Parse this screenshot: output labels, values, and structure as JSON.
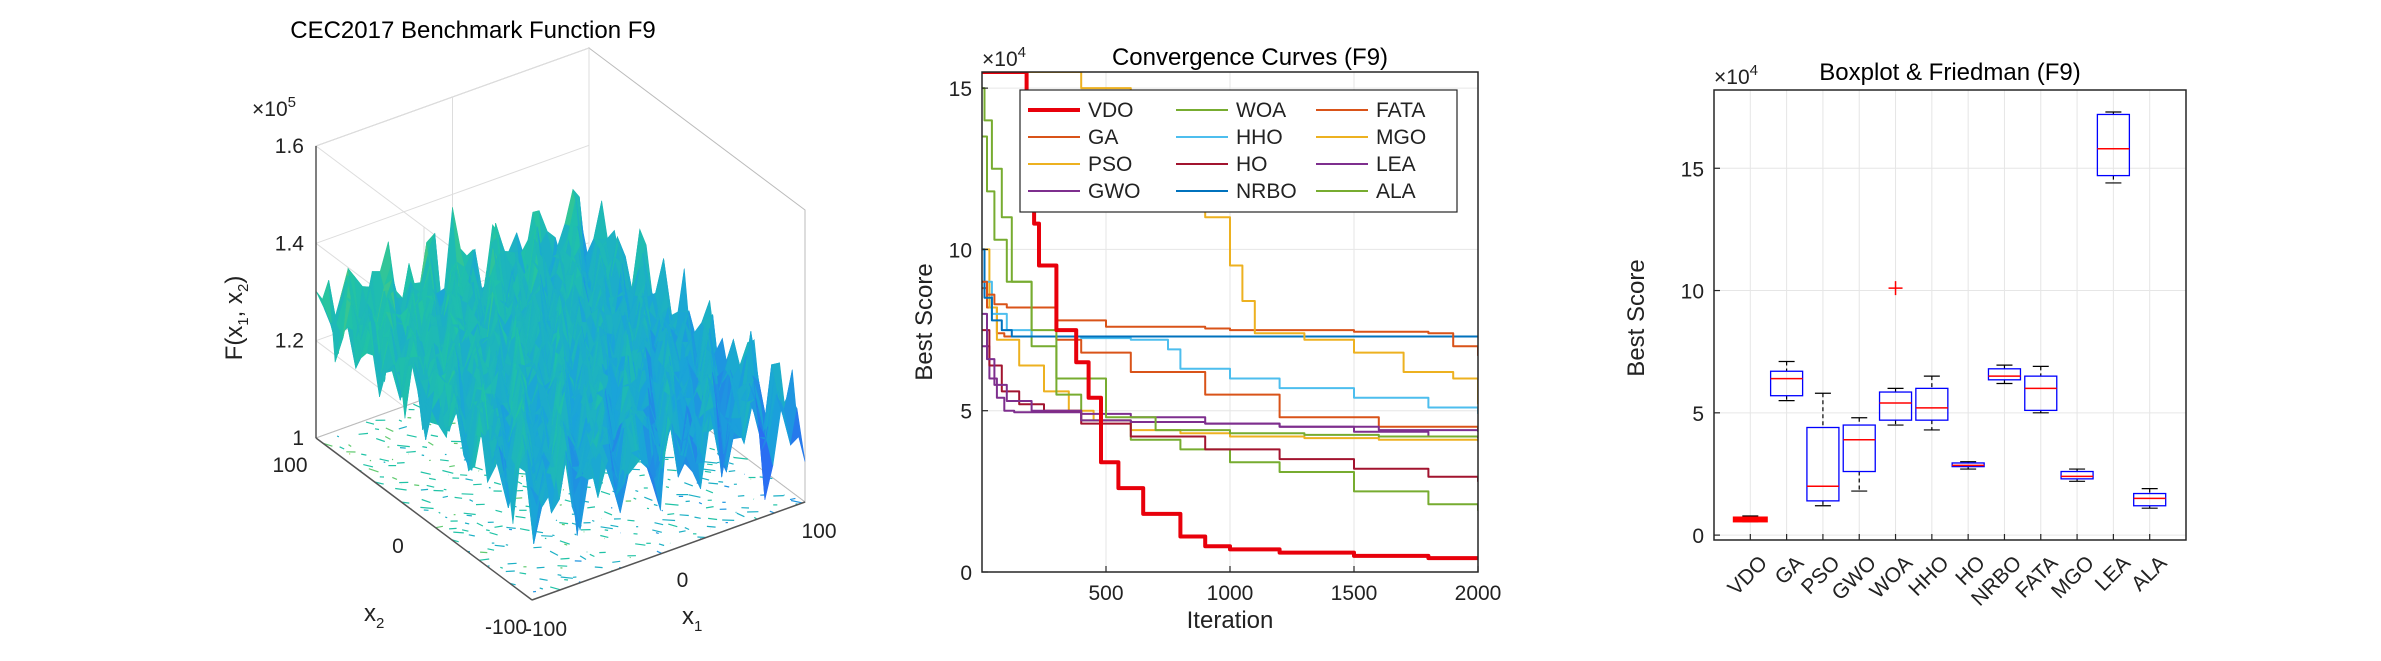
{
  "chart_data": [
    {
      "type": "surface3d",
      "title": "CEC2017 Benchmark Function F9",
      "zlabel": "F(x_1, x_2)",
      "zlabel_main": "F(x",
      "zlabel_sub1": "1",
      "zlabel_mid": ", x",
      "zlabel_sub2": "2",
      "zlabel_end": ")",
      "xlabel": "x_1",
      "xlabel_main": "x",
      "xlabel_sub": "1",
      "ylabel": "x_2",
      "ylabel_main": "x",
      "ylabel_sub": "2",
      "z_exponent_base": "×10",
      "z_exponent_power": "5",
      "z_ticks": [
        "1",
        "1.2",
        "1.4",
        "1.6"
      ],
      "z_tick_values": [
        1.0,
        1.2,
        1.4,
        1.6
      ],
      "x_ticks": [
        "-100",
        "0",
        "100"
      ],
      "x_tick_values": [
        -100,
        0,
        100
      ],
      "y_ticks": [
        "-100",
        "0",
        "100"
      ],
      "y_tick_values": [
        -100,
        0,
        100
      ],
      "zlim": [
        1.0,
        1.6
      ],
      "xlim": [
        -100,
        100
      ],
      "ylim": [
        -100,
        100
      ],
      "colormap": [
        "#3e26a8",
        "#2f5df9",
        "#1aa3da",
        "#20c3a6",
        "#8bcf4b",
        "#eec13b",
        "#f9fb15"
      ]
    },
    {
      "type": "line",
      "title": "Convergence Curves (F9)",
      "xlabel": "Iteration",
      "ylabel": "Best Score",
      "y_exponent_base": "×10",
      "y_exponent_power": "4",
      "xlim": [
        0,
        2000
      ],
      "ylim": [
        0,
        155000
      ],
      "x_ticks": [
        "500",
        "1000",
        "1500",
        "2000"
      ],
      "x_tick_values": [
        500,
        1000,
        1500,
        2000
      ],
      "y_ticks": [
        "0",
        "5",
        "10",
        "15"
      ],
      "y_tick_values": [
        0,
        50000,
        100000,
        150000
      ],
      "legend_location": "top",
      "series": [
        {
          "name": "VDO",
          "color": "#e8000b",
          "width": 4,
          "x": [
            0,
            120,
            180,
            210,
            230,
            300,
            380,
            430,
            480,
            550,
            650,
            800,
            900,
            1000,
            1200,
            1500,
            1800,
            2000
          ],
          "y": [
            155000,
            155000,
            128000,
            108000,
            95000,
            75000,
            65000,
            54000,
            34000,
            26000,
            18000,
            11000,
            8000,
            7000,
            6000,
            5000,
            4300,
            4000
          ]
        },
        {
          "name": "GA",
          "color": "#d95319",
          "width": 2,
          "x": [
            0,
            20,
            60,
            90,
            300,
            400,
            600,
            900,
            1200,
            1600,
            2000
          ],
          "y": [
            88000,
            82000,
            74000,
            73000,
            72000,
            68000,
            62000,
            55000,
            48000,
            45000,
            44000
          ]
        },
        {
          "name": "PSO",
          "color": "#edb120",
          "width": 2,
          "x": [
            0,
            30,
            60,
            150,
            250,
            350,
            450,
            600,
            800,
            1000,
            1300,
            1600,
            2000
          ],
          "y": [
            100000,
            82000,
            72000,
            64000,
            56000,
            50000,
            47000,
            44000,
            43000,
            42000,
            41500,
            41000,
            40500
          ]
        },
        {
          "name": "GWO",
          "color": "#7e2f8e",
          "width": 2,
          "x": [
            0,
            30,
            60,
            90,
            130,
            200,
            400,
            600,
            900,
            1200,
            1600,
            2000
          ],
          "y": [
            70000,
            60000,
            54000,
            50000,
            49500,
            49500,
            49000,
            48000,
            46000,
            45000,
            44000,
            43500
          ]
        },
        {
          "name": "WOA",
          "color": "#77ac30",
          "width": 2,
          "x": [
            0,
            10,
            40,
            80,
            120,
            200,
            300,
            400,
            600,
            800,
            1000,
            1200,
            1500,
            1800,
            2000
          ],
          "y": [
            150000,
            140000,
            125000,
            110000,
            90000,
            70000,
            55000,
            47000,
            41000,
            38000,
            34000,
            31000,
            25000,
            21000,
            19000
          ]
        },
        {
          "name": "HHO",
          "color": "#4dbeee",
          "width": 2,
          "x": [
            0,
            40,
            100,
            200,
            400,
            600,
            750,
            800,
            1000,
            1200,
            1500,
            1800,
            2000
          ],
          "y": [
            90000,
            80000,
            75000,
            73000,
            72500,
            72000,
            69000,
            63000,
            60000,
            57000,
            54000,
            51000,
            49000
          ]
        },
        {
          "name": "HO",
          "color": "#a2142f",
          "width": 2,
          "x": [
            0,
            30,
            80,
            150,
            250,
            400,
            600,
            900,
            1200,
            1500,
            1800,
            2000
          ],
          "y": [
            75000,
            64000,
            56000,
            52000,
            50000,
            46000,
            42000,
            38000,
            35000,
            32000,
            29500,
            28000
          ]
        },
        {
          "name": "NRBO",
          "color": "#0072bd",
          "width": 2,
          "x": [
            0,
            10,
            40,
            80,
            120,
            2000
          ],
          "y": [
            100000,
            85000,
            78000,
            75000,
            73000,
            73000
          ]
        },
        {
          "name": "FATA",
          "color": "#d95319",
          "width": 2,
          "x": [
            0,
            20,
            50,
            100,
            300,
            500,
            700,
            900,
            1000,
            1200,
            1500,
            1800,
            1900,
            2000
          ],
          "y": [
            90000,
            86000,
            83000,
            82000,
            78000,
            76000,
            76000,
            75500,
            75000,
            75000,
            74500,
            74000,
            70000,
            67000
          ]
        },
        {
          "name": "MGO",
          "color": "#edb120",
          "width": 2,
          "x": [
            0,
            200,
            400,
            600,
            800,
            900,
            1000,
            1050,
            1100,
            1300,
            1500,
            1700,
            1900,
            2000
          ],
          "y": [
            155000,
            155000,
            150000,
            145000,
            125000,
            110000,
            95000,
            84000,
            74000,
            72000,
            68000,
            62000,
            60000,
            52000
          ]
        },
        {
          "name": "LEA",
          "color": "#7e2f8e",
          "width": 2,
          "x": [
            0,
            20,
            50,
            100,
            200,
            400,
            600,
            900,
            1200,
            1500,
            1800,
            2000
          ],
          "y": [
            80000,
            66000,
            58000,
            53000,
            50000,
            47000,
            46500,
            46000,
            45000,
            43500,
            42000,
            41500
          ]
        },
        {
          "name": "ALA",
          "color": "#77ac30",
          "width": 2,
          "x": [
            0,
            20,
            50,
            100,
            200,
            300,
            500,
            700,
            1000,
            1300,
            1600,
            2000
          ],
          "y": [
            135000,
            118000,
            103000,
            90000,
            75000,
            60000,
            48000,
            44000,
            43000,
            42500,
            42000,
            42000
          ]
        }
      ]
    },
    {
      "type": "boxplot",
      "title": "Boxplot & Friedman (F9)",
      "ylabel": "Best Score",
      "y_exponent_base": "×10",
      "y_exponent_power": "4",
      "ylim": [
        -2000,
        182000
      ],
      "y_ticks": [
        "0",
        "5",
        "10",
        "15"
      ],
      "y_tick_values": [
        0,
        50000,
        100000,
        150000
      ],
      "categories": [
        "VDO",
        "GA",
        "PSO",
        "GWO",
        "WOA",
        "HHO",
        "HO",
        "NRBO",
        "FATA",
        "MGO",
        "LEA",
        "ALA"
      ],
      "box_color": "#0000ff",
      "median_color": "#ff0000",
      "boxes": [
        {
          "min": 5500,
          "q1": 5800,
          "median": 6200,
          "q3": 7000,
          "max": 7800,
          "outliers": []
        },
        {
          "min": 55000,
          "q1": 57000,
          "median": 64000,
          "q3": 67000,
          "max": 71000,
          "outliers": []
        },
        {
          "min": 12000,
          "q1": 14000,
          "median": 20000,
          "q3": 44000,
          "max": 58000,
          "outliers": []
        },
        {
          "min": 18000,
          "q1": 26000,
          "median": 39000,
          "q3": 45000,
          "max": 48000,
          "outliers": []
        },
        {
          "min": 45000,
          "q1": 47000,
          "median": 54000,
          "q3": 58500,
          "max": 60000,
          "outliers": [
            101000
          ]
        },
        {
          "min": 43000,
          "q1": 47000,
          "median": 52000,
          "q3": 60000,
          "max": 65000,
          "outliers": []
        },
        {
          "min": 27000,
          "q1": 28000,
          "median": 28500,
          "q3": 29500,
          "max": 30000,
          "outliers": []
        },
        {
          "min": 62000,
          "q1": 63500,
          "median": 65000,
          "q3": 68000,
          "max": 69500,
          "outliers": []
        },
        {
          "min": 50000,
          "q1": 51000,
          "median": 60000,
          "q3": 65000,
          "max": 69000,
          "outliers": []
        },
        {
          "min": 22000,
          "q1": 23000,
          "median": 24000,
          "q3": 26000,
          "max": 27000,
          "outliers": []
        },
        {
          "min": 144000,
          "q1": 147000,
          "median": 158000,
          "q3": 172000,
          "max": 173000,
          "outliers": []
        },
        {
          "min": 11000,
          "q1": 12000,
          "median": 15000,
          "q3": 17000,
          "max": 19000,
          "outliers": []
        }
      ]
    }
  ]
}
